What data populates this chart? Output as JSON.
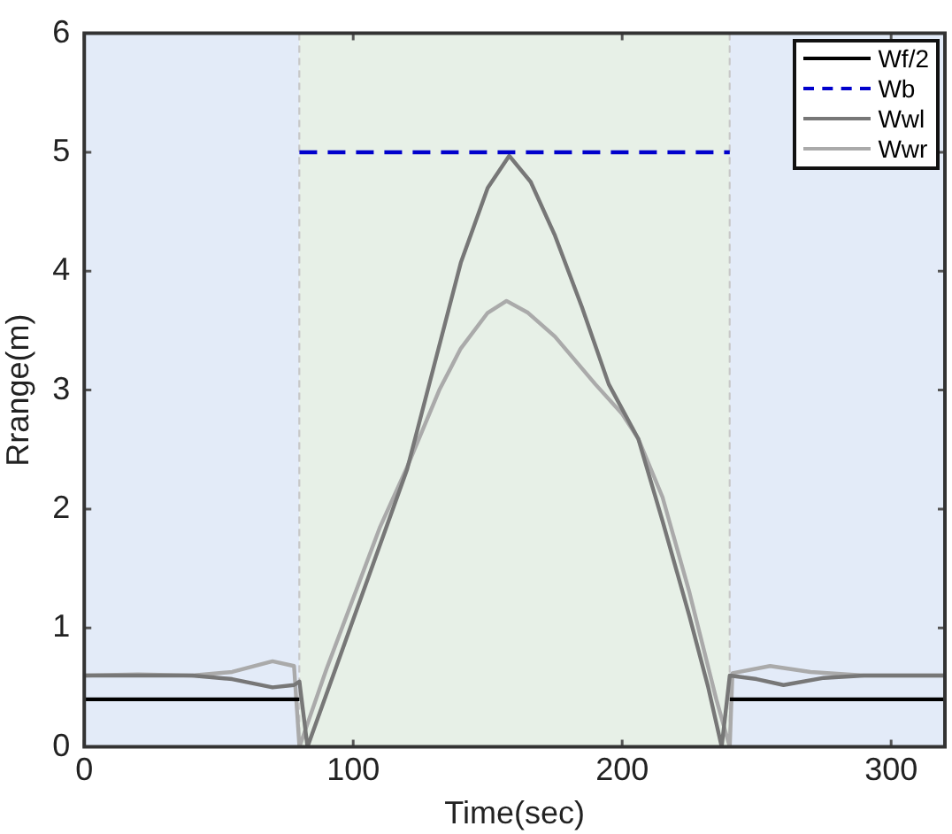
{
  "chart_data": {
    "type": "line",
    "xlabel": "Time(sec)",
    "ylabel": "Rrange(m)",
    "xlim": [
      0,
      320
    ],
    "ylim": [
      0,
      6
    ],
    "xticks": [
      0,
      100,
      200,
      300
    ],
    "yticks": [
      0,
      1,
      2,
      3,
      4,
      5,
      6
    ],
    "grid": false,
    "legend": "top right",
    "marker": "none",
    "bands": [
      {
        "axis": "x",
        "from": 0,
        "to": 80,
        "color": "#e3ebf8"
      },
      {
        "axis": "x",
        "from": 80,
        "to": 240,
        "color": "#e7f0e7"
      },
      {
        "axis": "x",
        "from": 240,
        "to": 320,
        "color": "#e3ebf8"
      }
    ],
    "series": [
      {
        "name": "Wf/2",
        "color": "#000000",
        "line_style": "solid",
        "x": [
          0,
          80,
          81,
          239,
          240,
          320
        ],
        "values": [
          0.4,
          0.4,
          null,
          null,
          0.4,
          0.4
        ]
      },
      {
        "name": "Wb",
        "color": "#0000cc",
        "line_style": "dashed",
        "x": [
          80,
          240
        ],
        "values": [
          5,
          5
        ]
      },
      {
        "name": "Wwl",
        "color": "#777777",
        "line_style": "solid",
        "x": [
          0,
          20,
          40,
          55,
          70,
          78,
          80,
          83,
          100,
          120,
          130,
          140,
          150,
          158,
          166,
          175,
          185,
          195,
          206,
          215,
          225,
          232,
          237,
          240,
          250,
          260,
          275,
          290,
          305,
          320
        ],
        "values": [
          0.6,
          0.6,
          0.6,
          0.57,
          0.5,
          0.52,
          0.55,
          0,
          1.07,
          2.33,
          3.2,
          4.07,
          4.7,
          4.97,
          4.75,
          4.3,
          3.7,
          3.05,
          2.59,
          1.9,
          1.1,
          0.5,
          0,
          0.6,
          0.57,
          0.52,
          0.58,
          0.6,
          0.6,
          0.6
        ]
      },
      {
        "name": "Wwr",
        "color": "#aaaaaa",
        "line_style": "solid",
        "x": [
          0,
          20,
          40,
          55,
          70,
          78,
          80,
          90,
          100,
          110,
          120,
          132,
          140,
          150,
          157,
          165,
          175,
          190,
          200,
          206,
          215,
          225,
          235,
          240,
          241,
          255,
          270,
          290,
          305,
          320
        ],
        "values": [
          0.6,
          0.61,
          0.6,
          0.63,
          0.72,
          0.68,
          0,
          0.65,
          1.25,
          1.85,
          2.35,
          3.0,
          3.35,
          3.65,
          3.75,
          3.65,
          3.45,
          3.05,
          2.8,
          2.59,
          2.1,
          1.3,
          0.4,
          0,
          0.62,
          0.68,
          0.63,
          0.6,
          0.6,
          0.6
        ]
      }
    ]
  }
}
